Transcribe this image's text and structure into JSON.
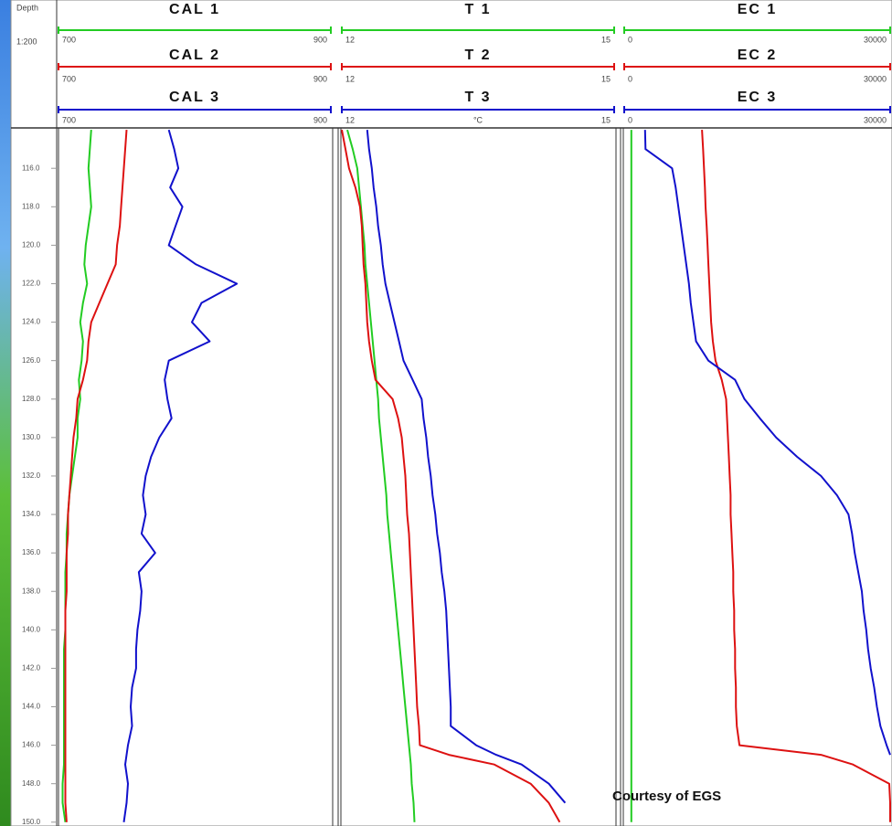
{
  "chart_data": {
    "type": "well-log",
    "depth_label": "Depth",
    "scale": "1:200",
    "annotation": "Courtesy of EGS",
    "ylim": [
      113.9,
      150.2
    ],
    "yticks": [
      {
        "value": 116,
        "label": "116.0"
      },
      {
        "value": 118,
        "label": "118.0"
      },
      {
        "value": 120,
        "label": "120.0"
      },
      {
        "value": 122,
        "label": "122.0"
      },
      {
        "value": 124,
        "label": "124.0"
      },
      {
        "value": 126,
        "label": "126.0"
      },
      {
        "value": 128,
        "label": "128.0"
      },
      {
        "value": 130,
        "label": "130.0"
      },
      {
        "value": 132,
        "label": "132.0"
      },
      {
        "value": 134,
        "label": "134.0"
      },
      {
        "value": 136,
        "label": "136.0"
      },
      {
        "value": 138,
        "label": "138.0"
      },
      {
        "value": 140,
        "label": "140.0"
      },
      {
        "value": 142,
        "label": "142.0"
      },
      {
        "value": 144,
        "label": "144.0"
      },
      {
        "value": 146,
        "label": "146.0"
      },
      {
        "value": 148,
        "label": "148.0"
      },
      {
        "value": 150,
        "label": "150.0"
      }
    ],
    "depth": [
      114,
      115,
      116,
      117,
      118,
      119,
      120,
      121,
      122,
      123,
      124,
      125,
      126,
      127,
      128,
      129,
      130,
      131,
      132,
      133,
      134,
      135,
      136,
      137,
      138,
      139,
      140,
      141,
      142,
      143,
      144,
      145,
      146,
      146.5,
      147,
      148,
      149,
      150
    ],
    "tracks": [
      {
        "xlim": [
          700,
          900
        ],
        "xticks": [
          700,
          900
        ],
        "series": [
          {
            "name": "CAL 1",
            "color": "#22cc22",
            "values": [
              724,
              723,
              722,
              723,
              724,
              722,
              720,
              719,
              721,
              718,
              716,
              718,
              717,
              715,
              716,
              714,
              714,
              712,
              710,
              708,
              707,
              706,
              706,
              705,
              705,
              705,
              705,
              704,
              704,
              704,
              704,
              704,
              704,
              704,
              704,
              703,
              703,
              705
            ]
          },
          {
            "name": "CAL 2",
            "color": "#dd1111",
            "values": [
              750,
              749,
              748,
              747,
              746,
              745,
              743,
              742,
              736,
              730,
              724,
              722,
              721,
              718,
              714,
              713,
              711,
              710,
              709,
              708,
              707,
              707,
              706,
              706,
              706,
              705,
              705,
              705,
              705,
              705,
              705,
              705,
              705,
              705,
              705,
              705,
              705,
              706
            ]
          },
          {
            "name": "CAL 3",
            "color": "#1111cc",
            "values": [
              781,
              785,
              788,
              782,
              791,
              786,
              781,
              801,
              831,
              805,
              798,
              811,
              781,
              778,
              780,
              783,
              774,
              768,
              764,
              762,
              764,
              761,
              771,
              759,
              761,
              760,
              758,
              757,
              757,
              754,
              753,
              754,
              751,
              750,
              749,
              751,
              750,
              748
            ]
          }
        ]
      },
      {
        "xlim": [
          12,
          15
        ],
        "xticks": [
          12,
          15
        ],
        "unit": "°C",
        "series": [
          {
            "name": "T 1",
            "color": "#22cc22",
            "values": [
              12.06,
              12.12,
              12.17,
              12.19,
              12.21,
              12.23,
              12.25,
              12.26,
              12.28,
              12.3,
              12.32,
              12.34,
              12.36,
              12.38,
              12.4,
              12.41,
              12.43,
              12.45,
              12.47,
              12.49,
              12.5,
              12.52,
              12.54,
              12.56,
              12.58,
              12.6,
              12.62,
              12.64,
              12.66,
              12.68,
              12.7,
              12.72,
              12.74,
              12.75,
              12.76,
              12.77,
              12.79,
              12.8
            ]
          },
          {
            "name": "T 2",
            "color": "#dd1111",
            "values": [
              12.0,
              12.04,
              12.08,
              12.15,
              12.2,
              12.22,
              12.23,
              12.24,
              12.26,
              12.27,
              12.28,
              12.3,
              12.33,
              12.37,
              12.56,
              12.62,
              12.66,
              12.68,
              12.7,
              12.71,
              12.72,
              12.74,
              12.75,
              12.76,
              12.77,
              12.78,
              12.79,
              12.8,
              12.81,
              12.82,
              12.83,
              12.85,
              12.86,
              13.18,
              13.68,
              14.08,
              14.28,
              14.4
            ]
          },
          {
            "name": "T 3",
            "color": "#1111cc",
            "values": [
              12.28,
              12.3,
              12.33,
              12.35,
              12.38,
              12.4,
              12.43,
              12.45,
              12.48,
              12.53,
              12.58,
              12.63,
              12.68,
              12.78,
              12.88,
              12.9,
              12.93,
              12.95,
              12.98,
              13.0,
              13.03,
              13.05,
              13.08,
              13.1,
              13.13,
              13.15,
              13.16,
              13.17,
              13.18,
              13.19,
              13.2,
              13.2,
              13.48,
              13.7,
              13.98,
              14.28,
              14.46,
              null
            ]
          }
        ]
      },
      {
        "xlim": [
          0,
          30000
        ],
        "xticks": [
          0,
          30000
        ],
        "series": [
          {
            "name": "EC 1",
            "color": "#22cc22",
            "values": [
              800,
              800,
              800,
              800,
              800,
              800,
              800,
              800,
              800,
              800,
              800,
              800,
              800,
              800,
              800,
              800,
              800,
              800,
              800,
              800,
              800,
              800,
              800,
              800,
              800,
              800,
              800,
              800,
              800,
              800,
              800,
              800,
              800,
              800,
              800,
              800,
              800,
              800
            ]
          },
          {
            "name": "EC 2",
            "color": "#dd1111",
            "values": [
              8770,
              8900,
              9000,
              9100,
              9180,
              9300,
              9400,
              9500,
              9600,
              9700,
              9800,
              10000,
              10300,
              11000,
              11500,
              11600,
              11700,
              11800,
              11900,
              12000,
              12000,
              12100,
              12200,
              12300,
              12300,
              12400,
              12400,
              12500,
              12500,
              12600,
              12600,
              12700,
              13000,
              22200,
              25800,
              29900,
              30000,
              30000
            ]
          },
          {
            "name": "EC 3",
            "color": "#1111cc",
            "values": [
              2350,
              2400,
              5400,
              5800,
              6100,
              6400,
              6700,
              7000,
              7300,
              7500,
              7800,
              8100,
              9500,
              12500,
              13570,
              15300,
              17140,
              19500,
              22200,
              24000,
              25300,
              25700,
              26000,
              26400,
              26800,
              27000,
              27300,
              27500,
              27800,
              28200,
              28500,
              28900,
              29600,
              30000,
              null,
              null,
              null,
              null
            ]
          }
        ]
      }
    ]
  }
}
